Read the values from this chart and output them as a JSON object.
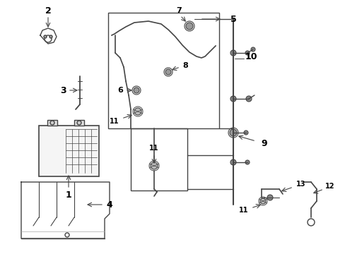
{
  "bg_color": "#ffffff",
  "line_color": "#444444",
  "label_color": "#000000",
  "fig_width": 4.89,
  "fig_height": 3.6,
  "dpi": 100,
  "main_box": [
    153,
    18,
    153,
    18,
    153,
    165,
    265,
    165,
    265,
    18
  ],
  "sub_box": [
    153,
    18,
    265,
    18,
    265,
    165,
    153,
    165
  ],
  "lower_sub_box": [
    185,
    18,
    265,
    18,
    265,
    100,
    185,
    100
  ]
}
